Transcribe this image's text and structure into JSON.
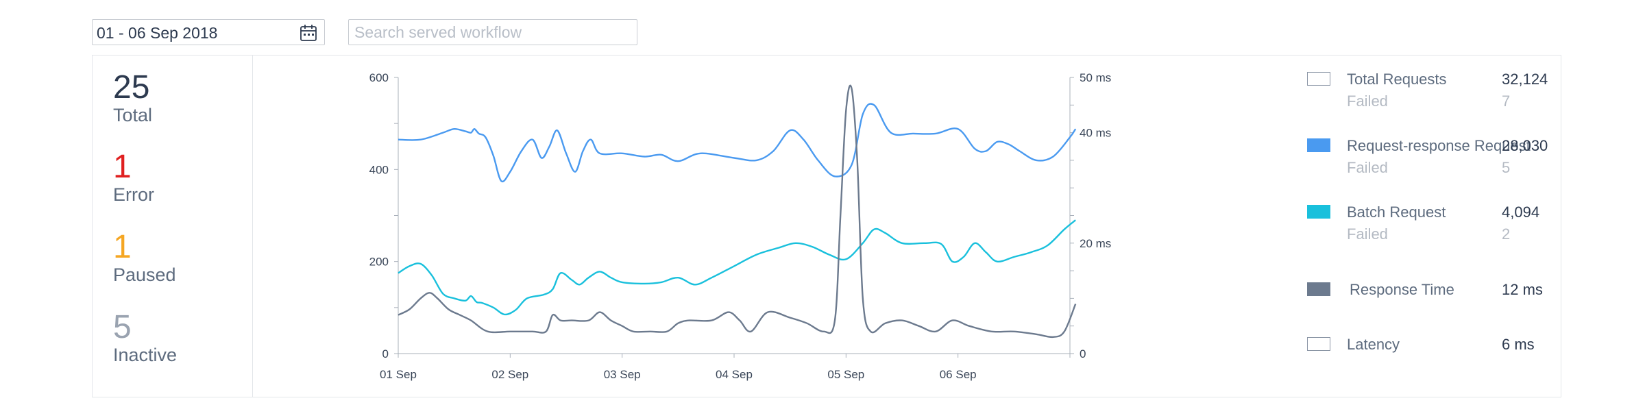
{
  "toolbar": {
    "date_range": "01 - 06 Sep 2018",
    "search_placeholder": "Search served workflow"
  },
  "stats": [
    {
      "value": "25",
      "label": "Total",
      "color": "#2d3a4f"
    },
    {
      "value": "1",
      "label": "Error",
      "color": "#e02020"
    },
    {
      "value": "1",
      "label": "Paused",
      "color": "#f5a623"
    },
    {
      "value": "5",
      "label": "Inactive",
      "color": "#9aa3b0"
    }
  ],
  "legend": {
    "total_requests": {
      "label": "Total Requests",
      "value": "32,124",
      "failed_label": "Failed",
      "failed_value": "7"
    },
    "request_response": {
      "label": "Request-response Request",
      "value": "28,030",
      "failed_label": "Failed",
      "failed_value": "5",
      "color": "#4a9af0"
    },
    "batch": {
      "label": "Batch Request",
      "value": "4,094",
      "failed_label": "Failed",
      "failed_value": "2",
      "color": "#19c0dc"
    },
    "response_time": {
      "label": "Response Time",
      "value": "12 ms",
      "color": "#6c7a8e"
    },
    "latency": {
      "label": "Latency",
      "value": "6 ms"
    }
  },
  "chart_data": {
    "type": "line",
    "x_tick_labels": [
      "01 Sep",
      "02 Sep",
      "03 Sep",
      "04 Sep",
      "05 Sep",
      "06 Sep"
    ],
    "x_range": [
      0,
      6
    ],
    "y_left": {
      "range": [
        0,
        600
      ],
      "ticks": [
        "0",
        "200",
        "400",
        "600"
      ]
    },
    "y_right": {
      "range": [
        0,
        50
      ],
      "ticks": [
        "0",
        "20 ms",
        "40 ms",
        "50 ms"
      ],
      "tick_values": [
        0,
        20,
        40,
        50
      ]
    },
    "series": [
      {
        "name": "Request-response Request",
        "axis": "left",
        "color": "#4a9af0",
        "points": [
          [
            0,
            465
          ],
          [
            0.2,
            465
          ],
          [
            0.4,
            480
          ],
          [
            0.5,
            488
          ],
          [
            0.6,
            483
          ],
          [
            0.65,
            480
          ],
          [
            0.68,
            488
          ],
          [
            0.72,
            478
          ],
          [
            0.78,
            470
          ],
          [
            0.85,
            430
          ],
          [
            0.92,
            375
          ],
          [
            1.0,
            395
          ],
          [
            1.1,
            440
          ],
          [
            1.2,
            465
          ],
          [
            1.28,
            425
          ],
          [
            1.35,
            450
          ],
          [
            1.42,
            485
          ],
          [
            1.5,
            435
          ],
          [
            1.58,
            395
          ],
          [
            1.65,
            440
          ],
          [
            1.72,
            465
          ],
          [
            1.8,
            435
          ],
          [
            2.0,
            435
          ],
          [
            2.2,
            428
          ],
          [
            2.35,
            432
          ],
          [
            2.5,
            418
          ],
          [
            2.7,
            435
          ],
          [
            3.0,
            425
          ],
          [
            3.2,
            420
          ],
          [
            3.35,
            440
          ],
          [
            3.5,
            485
          ],
          [
            3.62,
            465
          ],
          [
            3.75,
            420
          ],
          [
            3.9,
            385
          ],
          [
            4.05,
            410
          ],
          [
            4.15,
            520
          ],
          [
            4.25,
            540
          ],
          [
            4.4,
            480
          ],
          [
            4.6,
            478
          ],
          [
            4.8,
            478
          ],
          [
            5.0,
            488
          ],
          [
            5.15,
            445
          ],
          [
            5.25,
            440
          ],
          [
            5.35,
            460
          ],
          [
            5.45,
            455
          ],
          [
            5.55,
            440
          ],
          [
            5.7,
            420
          ],
          [
            5.85,
            428
          ],
          [
            6.0,
            470
          ],
          [
            6.05,
            488
          ]
        ]
      },
      {
        "name": "Batch Request",
        "axis": "left",
        "color": "#19c0dc",
        "points": [
          [
            0,
            175
          ],
          [
            0.1,
            190
          ],
          [
            0.2,
            195
          ],
          [
            0.3,
            170
          ],
          [
            0.4,
            130
          ],
          [
            0.5,
            120
          ],
          [
            0.6,
            115
          ],
          [
            0.65,
            125
          ],
          [
            0.7,
            112
          ],
          [
            0.75,
            110
          ],
          [
            0.85,
            100
          ],
          [
            0.95,
            85
          ],
          [
            1.05,
            95
          ],
          [
            1.15,
            120
          ],
          [
            1.3,
            128
          ],
          [
            1.38,
            140
          ],
          [
            1.45,
            175
          ],
          [
            1.55,
            160
          ],
          [
            1.62,
            150
          ],
          [
            1.7,
            165
          ],
          [
            1.8,
            178
          ],
          [
            1.9,
            165
          ],
          [
            2.0,
            155
          ],
          [
            2.2,
            152
          ],
          [
            2.35,
            155
          ],
          [
            2.5,
            165
          ],
          [
            2.65,
            150
          ],
          [
            2.8,
            165
          ],
          [
            3.0,
            190
          ],
          [
            3.2,
            215
          ],
          [
            3.4,
            230
          ],
          [
            3.55,
            240
          ],
          [
            3.7,
            232
          ],
          [
            3.85,
            215
          ],
          [
            4.0,
            205
          ],
          [
            4.15,
            240
          ],
          [
            4.25,
            270
          ],
          [
            4.35,
            262
          ],
          [
            4.5,
            240
          ],
          [
            4.7,
            240
          ],
          [
            4.85,
            238
          ],
          [
            4.95,
            200
          ],
          [
            5.05,
            210
          ],
          [
            5.15,
            240
          ],
          [
            5.25,
            220
          ],
          [
            5.35,
            200
          ],
          [
            5.5,
            210
          ],
          [
            5.65,
            220
          ],
          [
            5.8,
            235
          ],
          [
            5.95,
            270
          ],
          [
            6.05,
            290
          ]
        ]
      },
      {
        "name": "Response Time",
        "axis": "right",
        "color": "#6c7a8e",
        "points": [
          [
            0,
            7
          ],
          [
            0.1,
            8
          ],
          [
            0.2,
            10
          ],
          [
            0.28,
            11
          ],
          [
            0.35,
            10
          ],
          [
            0.45,
            8
          ],
          [
            0.55,
            7
          ],
          [
            0.65,
            6
          ],
          [
            0.8,
            4
          ],
          [
            1.0,
            4
          ],
          [
            1.2,
            4
          ],
          [
            1.32,
            4
          ],
          [
            1.38,
            7
          ],
          [
            1.45,
            6
          ],
          [
            1.55,
            6
          ],
          [
            1.7,
            6
          ],
          [
            1.8,
            7.5
          ],
          [
            1.9,
            6
          ],
          [
            2.0,
            5
          ],
          [
            2.1,
            4
          ],
          [
            2.25,
            4
          ],
          [
            2.4,
            4
          ],
          [
            2.5,
            5.5
          ],
          [
            2.6,
            6
          ],
          [
            2.8,
            6
          ],
          [
            2.95,
            7.5
          ],
          [
            3.05,
            6
          ],
          [
            3.15,
            4
          ],
          [
            3.3,
            7.5
          ],
          [
            3.5,
            6.5
          ],
          [
            3.65,
            5.5
          ],
          [
            3.8,
            4
          ],
          [
            3.9,
            6
          ],
          [
            3.95,
            25
          ],
          [
            4.0,
            44
          ],
          [
            4.05,
            48
          ],
          [
            4.1,
            35
          ],
          [
            4.15,
            10
          ],
          [
            4.22,
            4
          ],
          [
            4.35,
            5.5
          ],
          [
            4.5,
            6
          ],
          [
            4.65,
            5
          ],
          [
            4.8,
            4
          ],
          [
            4.95,
            6
          ],
          [
            5.1,
            5
          ],
          [
            5.3,
            4
          ],
          [
            5.5,
            4
          ],
          [
            5.7,
            3.5
          ],
          [
            5.85,
            3
          ],
          [
            5.95,
            4
          ],
          [
            6.05,
            9
          ]
        ]
      }
    ]
  }
}
